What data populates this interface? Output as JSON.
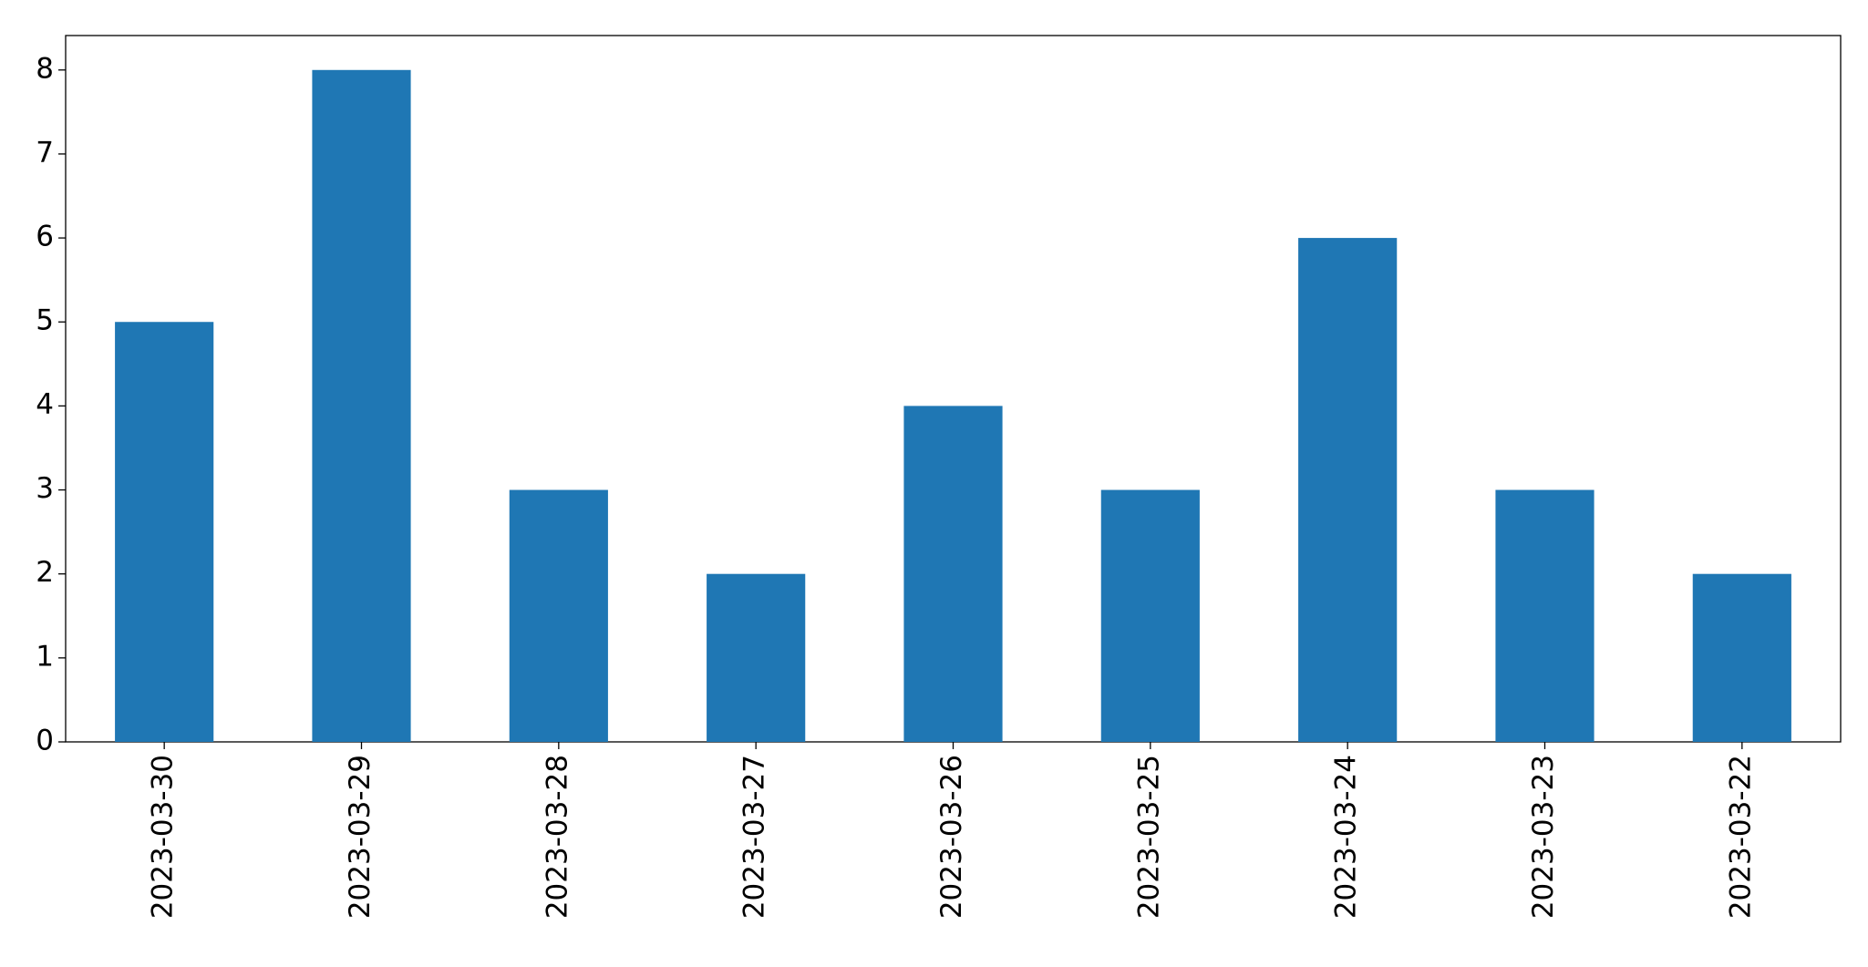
{
  "chart_data": {
    "type": "bar",
    "categories": [
      "2023-03-30",
      "2023-03-29",
      "2023-03-28",
      "2023-03-27",
      "2023-03-26",
      "2023-03-25",
      "2023-03-24",
      "2023-03-23",
      "2023-03-22"
    ],
    "values": [
      5,
      8,
      3,
      2,
      4,
      3,
      6,
      3,
      2
    ],
    "color": "#1f77b4",
    "ylim": [
      0,
      8.41
    ],
    "yticks": [
      0,
      1,
      2,
      3,
      4,
      5,
      6,
      7,
      8
    ],
    "grid": false
  }
}
